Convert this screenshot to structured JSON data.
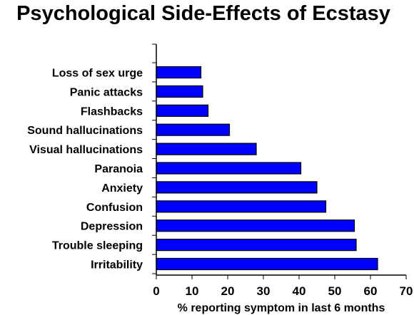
{
  "chart_data": {
    "type": "bar",
    "orientation": "horizontal",
    "title": "Psychological Side-Effects of Ecstasy",
    "xlabel": "% reporting symptom in last 6 months",
    "ylabel": "",
    "xlim": [
      0,
      70
    ],
    "xticks": [
      "0",
      "10",
      "20",
      "30",
      "40",
      "50",
      "60",
      "70"
    ],
    "categories": [
      "Loss of sex urge",
      "Panic attacks",
      "Flashbacks",
      "Sound hallucinations",
      "Visual hallucinations",
      "Paranoia",
      "Anxiety",
      "Confusion",
      "Depression",
      "Trouble sleeping",
      "Irritability"
    ],
    "values": [
      12.5,
      13,
      14.5,
      20.5,
      28,
      40.5,
      45,
      47.5,
      55.5,
      56,
      62
    ],
    "bar_color": "#0000FF",
    "grid": false,
    "legend": "none"
  }
}
